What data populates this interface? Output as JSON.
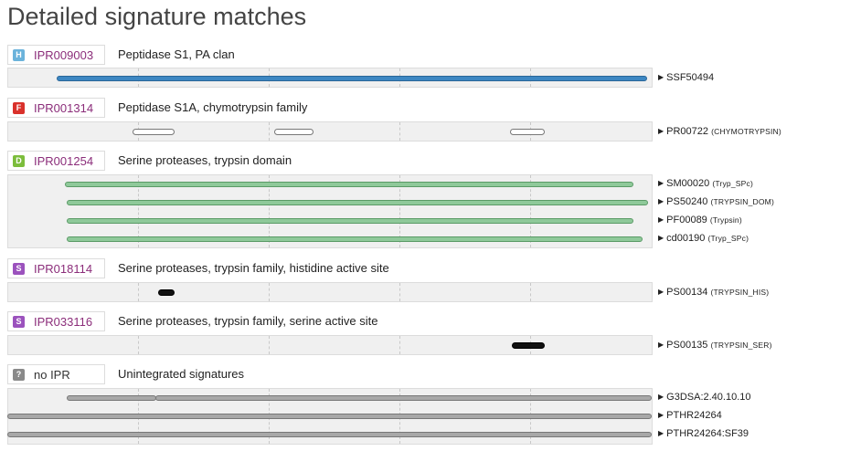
{
  "page_title": "Detailed signature matches",
  "colors": {
    "homologous_superfamily": "#6bb3db",
    "family": "#d9312b",
    "domain": "#7cbd3c",
    "site": "#9b52bd",
    "unintegrated": "#8a8a8a"
  },
  "entries": [
    {
      "badge": "H",
      "badge_icon": "homologous-superfamily-icon",
      "ipr": "IPR009003",
      "name": "Peptidase S1, PA clan",
      "signatures": [
        {
          "id": "SSF50494",
          "name": ""
        }
      ]
    },
    {
      "badge": "F",
      "badge_icon": "family-icon",
      "ipr": "IPR001314",
      "name": "Peptidase S1A, chymotrypsin family",
      "signatures": [
        {
          "id": "PR00722",
          "name": "(CHYMOTRYPSIN)"
        }
      ]
    },
    {
      "badge": "D",
      "badge_icon": "domain-icon",
      "ipr": "IPR001254",
      "name": "Serine proteases, trypsin domain",
      "signatures": [
        {
          "id": "SM00020",
          "name": "(Tryp_SPc)"
        },
        {
          "id": "PS50240",
          "name": "(TRYPSIN_DOM)"
        },
        {
          "id": "PF00089",
          "name": "(Trypsin)"
        },
        {
          "id": "cd00190",
          "name": "(Tryp_SPc)"
        }
      ]
    },
    {
      "badge": "S",
      "badge_icon": "site-icon",
      "ipr": "IPR018114",
      "name": "Serine proteases, trypsin family, histidine active site",
      "signatures": [
        {
          "id": "PS00134",
          "name": "(TRYPSIN_HIS)"
        }
      ]
    },
    {
      "badge": "S",
      "badge_icon": "site-icon",
      "ipr": "IPR033116",
      "name": "Serine proteases, trypsin family, serine active site",
      "signatures": [
        {
          "id": "PS00135",
          "name": "(TRYPSIN_SER)"
        }
      ]
    },
    {
      "badge": "?",
      "badge_icon": "unintegrated-icon",
      "ipr": "no IPR",
      "name": "Unintegrated signatures",
      "signatures": [
        {
          "id": "G3DSA:2.40.10.10",
          "name": ""
        },
        {
          "id": "PTHR24264",
          "name": ""
        },
        {
          "id": "PTHR24264:SF39",
          "name": ""
        }
      ]
    }
  ]
}
